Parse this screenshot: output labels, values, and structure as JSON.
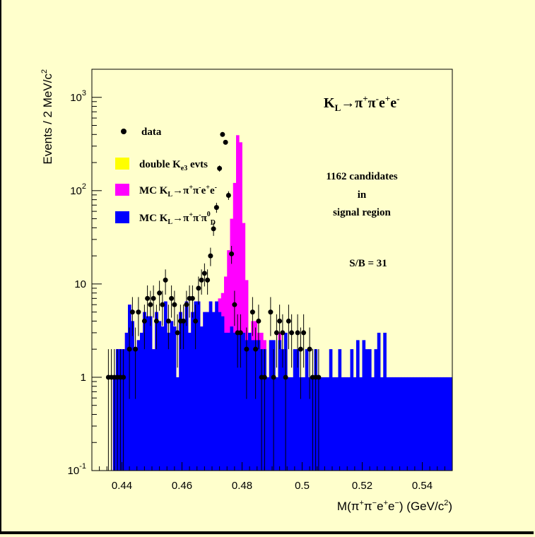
{
  "chart_data": {
    "type": "histogram",
    "title": "K_L→π⁺π⁻e⁺e⁻",
    "title_parts": {
      "k": "K",
      "k_sub": "L",
      "arrow": "→",
      "pi": "π",
      "plus": "+",
      "minus": "-",
      "e": "e"
    },
    "xlabel_parts": {
      "prefix": "M(",
      "pi": "π",
      "e": "e",
      "plus": "+",
      "minus": "−",
      "close": ")",
      "unit": "(GeV/c",
      "sq": "2",
      "unit_close": ")"
    },
    "ylabel_parts": {
      "text": "Events / 2 MeV/c",
      "sq": "2"
    },
    "x_range": [
      0.43,
      0.55
    ],
    "y_range": [
      0.1,
      2000
    ],
    "y_scale": "log",
    "x_ticks": [
      "0.44",
      "0.46",
      "0.48",
      "0.5",
      "0.52",
      "0.54"
    ],
    "x_tick_values": [
      0.44,
      0.46,
      0.48,
      0.5,
      0.52,
      0.54
    ],
    "y_ticks": [
      {
        "value": 0.1,
        "base": "10",
        "exp": "-1"
      },
      {
        "value": 1,
        "base": "1",
        "exp": ""
      },
      {
        "value": 10,
        "base": "10",
        "exp": ""
      },
      {
        "value": 100,
        "base": "10",
        "exp": "2"
      },
      {
        "value": 1000,
        "base": "10",
        "exp": "3"
      }
    ],
    "bin_width": 0.001,
    "bin_start": 0.435,
    "series": [
      {
        "key": "magenta",
        "color": "#ff00ff",
        "values": [
          0,
          0,
          1.0,
          2.0,
          2.0,
          2.0,
          3.0,
          6.0,
          4.0,
          2.0,
          2.5,
          3.0,
          5.0,
          4.5,
          4.5,
          2.0,
          5.0,
          4.0,
          3.5,
          6.5,
          3.0,
          4.0,
          3.5,
          1.0,
          5.0,
          4.0,
          6.5,
          3.0,
          5.0,
          6.5,
          6.5,
          3.5,
          5.0,
          5.0,
          6.5,
          5.0,
          6.5,
          7.0,
          8.0,
          12.0,
          23.0,
          50.0,
          121.0,
          393.0,
          330.0,
          45.0,
          11.0,
          2.0,
          4.0,
          4.0,
          3.0,
          3.0,
          2.5,
          1.0,
          1.0,
          1.0,
          1.0,
          3.0,
          1.0,
          1.0,
          1.0,
          1.0,
          1.0,
          1.0,
          1.0,
          1.0,
          1.0,
          1.0,
          1.0,
          1.0,
          1.0,
          1.0,
          1.0,
          1.0,
          1.0,
          1.0,
          1.0,
          1.0,
          1.0,
          1.0,
          1.0,
          1.0,
          1.0,
          1.0,
          1.0,
          1.0,
          1.0,
          1.0,
          1.0,
          1.0,
          1.0,
          1.0,
          1.0,
          1.0,
          1.0,
          1.0,
          1.0,
          1.0,
          1.0,
          1.0,
          1.0,
          1.0,
          1.0,
          1.0,
          1.0,
          1.0,
          1.0,
          1.0,
          1.0,
          1.0,
          1.0,
          1.0,
          1.0,
          1.0
        ]
      },
      {
        "key": "blue",
        "color": "#0000ff",
        "values": [
          0,
          0,
          1.0,
          2.0,
          2.0,
          2.0,
          3.0,
          6.0,
          4.0,
          2.0,
          2.5,
          3.0,
          5.0,
          4.5,
          4.5,
          2.0,
          5.0,
          4.0,
          3.5,
          6.5,
          3.0,
          4.0,
          3.5,
          1.0,
          5.0,
          4.0,
          6.5,
          3.0,
          5.0,
          6.5,
          6.5,
          3.5,
          5.0,
          5.0,
          6.5,
          5.0,
          6.5,
          5.0,
          4.5,
          3.0,
          3.0,
          3.5,
          3.0,
          3.0,
          3.0,
          3.0,
          2.5,
          3.0,
          2.5,
          2.5,
          2.5,
          2.0,
          2.0,
          1.0,
          2.5,
          2.5,
          1.0,
          2.5,
          2.0,
          3.0,
          1.0,
          1.0,
          2.0,
          2.0,
          1.0,
          1.0,
          2.0,
          1.0,
          1.0,
          2.0,
          1.0,
          1.0,
          1.0,
          1.0,
          2.0,
          1.0,
          1.0,
          2.0,
          1.0,
          1.0,
          1.0,
          2.0,
          1.0,
          2.5,
          1.0,
          2.5,
          2.0,
          2.0,
          1.0,
          2.0,
          3.0,
          1.0,
          3.0,
          1.0,
          1.0,
          1.0,
          1.0,
          1.0,
          1.0,
          1.0,
          1.0,
          1.0,
          1.0,
          1.0,
          1.0,
          1.0,
          1.0,
          1.0,
          1.0,
          1.0,
          1.0,
          1.0,
          1.0,
          1.0,
          1.0,
          1.0,
          1.0
        ]
      },
      {
        "key": "yellow",
        "color": "#ffff00",
        "values": [
          0,
          0,
          0,
          0,
          0,
          0,
          0,
          0,
          0,
          0,
          0,
          0,
          0,
          0,
          0,
          0,
          0,
          0,
          0,
          0,
          0,
          0,
          0,
          0,
          0,
          0,
          0,
          0,
          0,
          0,
          0,
          0,
          0,
          0,
          0,
          0,
          0,
          0,
          0,
          0,
          0,
          0,
          0,
          0,
          0,
          0,
          0,
          0,
          0,
          0,
          0,
          0,
          0,
          0,
          0,
          0,
          0,
          0,
          0,
          0,
          0,
          0,
          0,
          0,
          0,
          0,
          0,
          0,
          0,
          0,
          0,
          0,
          0,
          0,
          0,
          0,
          0,
          0,
          0,
          0,
          0,
          0,
          0,
          0,
          0,
          0,
          0,
          0,
          0,
          0,
          0,
          0,
          0,
          0,
          0,
          0,
          0,
          0,
          0,
          0,
          0,
          0,
          0,
          0,
          0,
          0,
          0,
          0,
          0,
          0,
          0,
          0,
          0,
          0,
          0
        ]
      }
    ],
    "data_points": [
      {
        "x": 0.4355,
        "y": 1
      },
      {
        "x": 0.4365,
        "y": 1
      },
      {
        "x": 0.4375,
        "y": 1
      },
      {
        "x": 0.4385,
        "y": 1
      },
      {
        "x": 0.4395,
        "y": 1
      },
      {
        "x": 0.4405,
        "y": 1
      },
      {
        "x": 0.4425,
        "y": 2
      },
      {
        "x": 0.4435,
        "y": 5
      },
      {
        "x": 0.4445,
        "y": 2
      },
      {
        "x": 0.4455,
        "y": 5
      },
      {
        "x": 0.4475,
        "y": 4
      },
      {
        "x": 0.4485,
        "y": 7
      },
      {
        "x": 0.4495,
        "y": 6
      },
      {
        "x": 0.4505,
        "y": 7
      },
      {
        "x": 0.4515,
        "y": 4
      },
      {
        "x": 0.4525,
        "y": 8
      },
      {
        "x": 0.4535,
        "y": 6
      },
      {
        "x": 0.4545,
        "y": 11
      },
      {
        "x": 0.4555,
        "y": 4
      },
      {
        "x": 0.4565,
        "y": 7
      },
      {
        "x": 0.4575,
        "y": 6
      },
      {
        "x": 0.4585,
        "y": 3
      },
      {
        "x": 0.4595,
        "y": 4
      },
      {
        "x": 0.4605,
        "y": 4
      },
      {
        "x": 0.4615,
        "y": 6
      },
      {
        "x": 0.4625,
        "y": 7
      },
      {
        "x": 0.4635,
        "y": 7
      },
      {
        "x": 0.4645,
        "y": 4
      },
      {
        "x": 0.4655,
        "y": 9
      },
      {
        "x": 0.4665,
        "y": 11
      },
      {
        "x": 0.4675,
        "y": 13
      },
      {
        "x": 0.4685,
        "y": 11
      },
      {
        "x": 0.4695,
        "y": 20
      },
      {
        "x": 0.4705,
        "y": 39
      },
      {
        "x": 0.4715,
        "y": 66
      },
      {
        "x": 0.4725,
        "y": 173
      },
      {
        "x": 0.4735,
        "y": 400
      },
      {
        "x": 0.4745,
        "y": 330
      },
      {
        "x": 0.4755,
        "y": 89
      },
      {
        "x": 0.4765,
        "y": 21
      },
      {
        "x": 0.4775,
        "y": 6
      },
      {
        "x": 0.4785,
        "y": 3
      },
      {
        "x": 0.4795,
        "y": 3
      },
      {
        "x": 0.4815,
        "y": 2
      },
      {
        "x": 0.4835,
        "y": 5
      },
      {
        "x": 0.4845,
        "y": 2
      },
      {
        "x": 0.4855,
        "y": 4
      },
      {
        "x": 0.4865,
        "y": 1
      },
      {
        "x": 0.4875,
        "y": 1
      },
      {
        "x": 0.4895,
        "y": 5
      },
      {
        "x": 0.4905,
        "y": 1
      },
      {
        "x": 0.4915,
        "y": 3
      },
      {
        "x": 0.4925,
        "y": 4
      },
      {
        "x": 0.4935,
        "y": 3
      },
      {
        "x": 0.4945,
        "y": 1
      },
      {
        "x": 0.4955,
        "y": 4
      },
      {
        "x": 0.4965,
        "y": 3
      },
      {
        "x": 0.4985,
        "y": 3
      },
      {
        "x": 0.4995,
        "y": 2
      },
      {
        "x": 0.5005,
        "y": 3
      },
      {
        "x": 0.5025,
        "y": 2
      },
      {
        "x": 0.5035,
        "y": 1
      },
      {
        "x": 0.5045,
        "y": 1
      },
      {
        "x": 0.5055,
        "y": 1
      }
    ],
    "legend": [
      {
        "kind": "marker",
        "label": "data"
      },
      {
        "kind": "box",
        "color": "#ffff00",
        "label_parts": {
          "main": "double K",
          "sub": "e3",
          "tail": " evts"
        }
      },
      {
        "kind": "box",
        "color": "#ff00ff",
        "label_parts": {
          "main": "MC K",
          "sub": "L",
          "arrow": "→",
          "pi": "π",
          "plus": "+",
          "minus": "-",
          "e": "e"
        }
      },
      {
        "kind": "box",
        "color": "#0000ff",
        "label_parts": {
          "main": "MC K",
          "sub": "L",
          "arrow": "→",
          "pi": "π",
          "plus": "+",
          "minus": "-",
          "zero": "0",
          "d": "D"
        }
      }
    ],
    "annotations": [
      "1162 candidates",
      "in",
      "signal region",
      "S/B = 31"
    ]
  }
}
